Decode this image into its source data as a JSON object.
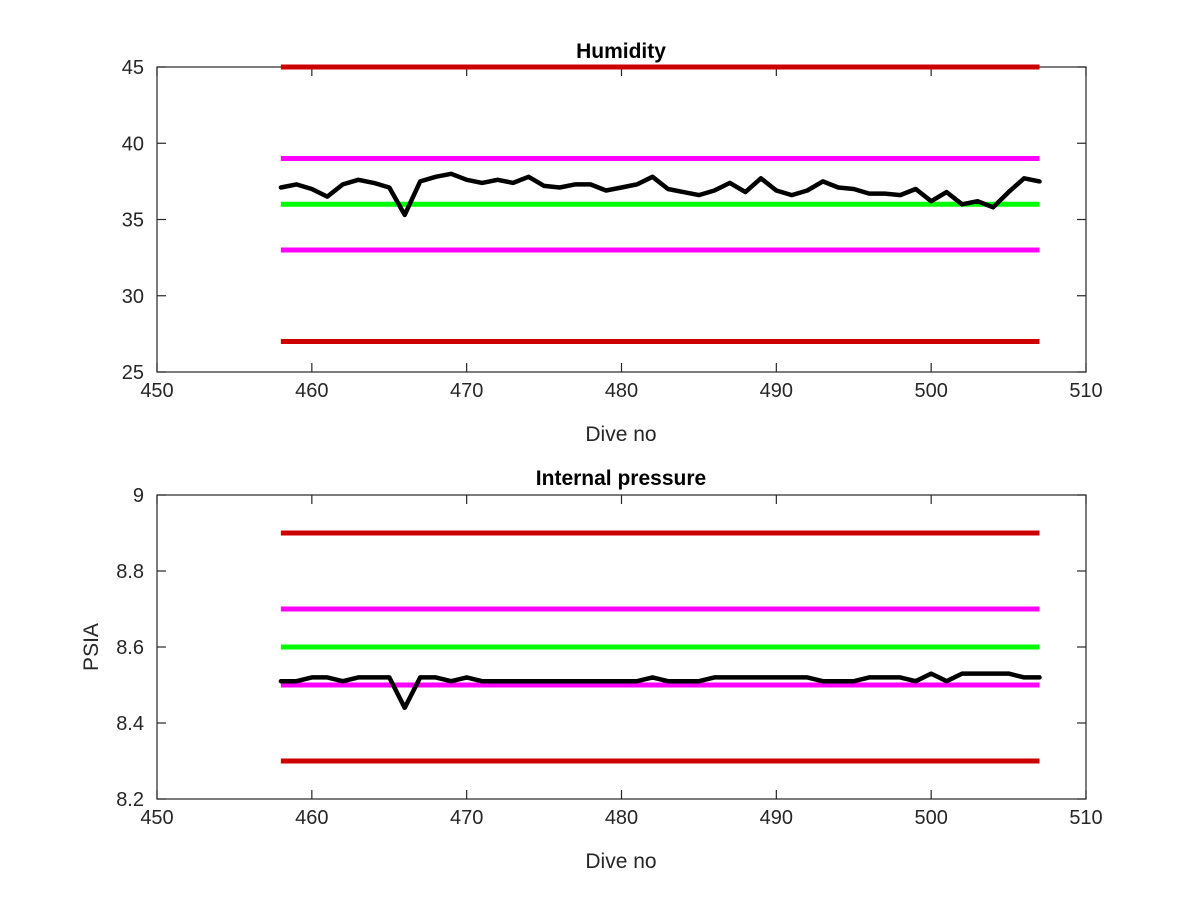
{
  "chart_data": [
    {
      "type": "line",
      "title": "Humidity",
      "xlabel": "Dive no",
      "ylabel": "",
      "xlim": [
        450,
        510
      ],
      "ylim": [
        25,
        45
      ],
      "xticks": [
        "450",
        "460",
        "470",
        "480",
        "490",
        "500",
        "510"
      ],
      "yticks": [
        "25",
        "30",
        "35",
        "40",
        "45"
      ],
      "grid": false,
      "series": [
        {
          "color": "#000000",
          "x": [
            458,
            459,
            460,
            461,
            462,
            463,
            464,
            465,
            466,
            467,
            468,
            469,
            470,
            471,
            472,
            473,
            474,
            475,
            476,
            477,
            478,
            479,
            480,
            481,
            482,
            483,
            484,
            485,
            486,
            487,
            488,
            489,
            490,
            491,
            492,
            493,
            494,
            495,
            496,
            497,
            498,
            499,
            500,
            501,
            502,
            503,
            504,
            505,
            506,
            507
          ],
          "y": [
            37.1,
            37.3,
            37.0,
            36.5,
            37.3,
            37.6,
            37.4,
            37.1,
            35.3,
            37.5,
            37.8,
            38.0,
            37.6,
            37.4,
            37.6,
            37.4,
            37.8,
            37.2,
            37.1,
            37.3,
            37.3,
            36.9,
            37.1,
            37.3,
            37.8,
            37.0,
            36.8,
            36.6,
            36.9,
            37.4,
            36.8,
            37.7,
            36.9,
            36.6,
            36.9,
            37.5,
            37.1,
            37.0,
            36.7,
            36.7,
            36.6,
            37.0,
            36.2,
            36.8,
            36.0,
            36.2,
            35.8,
            36.8,
            37.7,
            37.5
          ]
        }
      ],
      "reference_lines": [
        {
          "y": 45,
          "x": [
            458,
            507
          ],
          "color": "#cc0000"
        },
        {
          "y": 39,
          "x": [
            458,
            507
          ],
          "color": "#ff00ff"
        },
        {
          "y": 36,
          "x": [
            458,
            507
          ],
          "color": "#00ff00"
        },
        {
          "y": 33,
          "x": [
            458,
            507
          ],
          "color": "#ff00ff"
        },
        {
          "y": 27,
          "x": [
            458,
            507
          ],
          "color": "#cc0000"
        }
      ]
    },
    {
      "type": "line",
      "title": "Internal pressure",
      "xlabel": "Dive no",
      "ylabel": "PSIA",
      "xlim": [
        450,
        510
      ],
      "ylim": [
        8.2,
        9.0
      ],
      "xticks": [
        "450",
        "460",
        "470",
        "480",
        "490",
        "500",
        "510"
      ],
      "yticks": [
        "8.2",
        "8.4",
        "8.6",
        "8.8",
        "9"
      ],
      "grid": false,
      "series": [
        {
          "color": "#000000",
          "x": [
            458,
            459,
            460,
            461,
            462,
            463,
            464,
            465,
            466,
            467,
            468,
            469,
            470,
            471,
            472,
            473,
            474,
            475,
            476,
            477,
            478,
            479,
            480,
            481,
            482,
            483,
            484,
            485,
            486,
            487,
            488,
            489,
            490,
            491,
            492,
            493,
            494,
            495,
            496,
            497,
            498,
            499,
            500,
            501,
            502,
            503,
            504,
            505,
            506,
            507
          ],
          "y": [
            8.51,
            8.51,
            8.52,
            8.52,
            8.51,
            8.52,
            8.52,
            8.52,
            8.44,
            8.52,
            8.52,
            8.51,
            8.52,
            8.51,
            8.51,
            8.51,
            8.51,
            8.51,
            8.51,
            8.51,
            8.51,
            8.51,
            8.51,
            8.51,
            8.52,
            8.51,
            8.51,
            8.51,
            8.52,
            8.52,
            8.52,
            8.52,
            8.52,
            8.52,
            8.52,
            8.51,
            8.51,
            8.51,
            8.52,
            8.52,
            8.52,
            8.51,
            8.53,
            8.51,
            8.53,
            8.53,
            8.53,
            8.53,
            8.52,
            8.52
          ]
        }
      ],
      "reference_lines": [
        {
          "y": 8.9,
          "x": [
            458,
            507
          ],
          "color": "#cc0000"
        },
        {
          "y": 8.7,
          "x": [
            458,
            507
          ],
          "color": "#ff00ff"
        },
        {
          "y": 8.6,
          "x": [
            458,
            507
          ],
          "color": "#00ff00"
        },
        {
          "y": 8.5,
          "x": [
            458,
            507
          ],
          "color": "#ff00ff"
        },
        {
          "y": 8.3,
          "x": [
            458,
            507
          ],
          "color": "#cc0000"
        }
      ]
    }
  ]
}
